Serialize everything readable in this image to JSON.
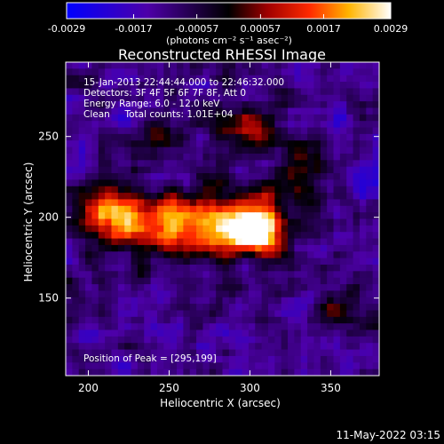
{
  "chart_data": {
    "type": "heatmap",
    "title": "Reconstructed RHESSI Image",
    "xlabel": "Heliocentric X (arcsec)",
    "ylabel": "Heliocentric Y (arcsec)",
    "xlim": [
      186,
      380
    ],
    "ylim": [
      102,
      296
    ],
    "x_ticks": [
      200,
      250,
      300,
      350
    ],
    "y_ticks": [
      150,
      200,
      250
    ],
    "colorbar": {
      "range": [
        -0.0029,
        0.0029
      ],
      "tick_values": [
        -0.0029,
        -0.0017,
        -0.00057,
        0.00057,
        0.0017,
        0.0029
      ],
      "tick_labels": [
        "-0.0029",
        "-0.0017",
        "-0.00057",
        "0.00057",
        "0.0017",
        "0.0029"
      ],
      "unit_label": "(photons cm⁻² s⁻¹ asec⁻²)"
    },
    "annotations": [
      "15-Jan-2013 22:44:44.000 to 22:46:32.000",
      "Detectors: 3F 4F 5F 6F 7F 8F, Att 0",
      "Energy Range: 6.0 - 12.0 keV",
      "Clean     Total counts: 1.01E+04"
    ],
    "peak_label": "Position of Peak = [295,199]",
    "peak_position": [
      295,
      199
    ],
    "grid": false
  },
  "footer": {
    "date": "11-May-2022 03:15"
  }
}
